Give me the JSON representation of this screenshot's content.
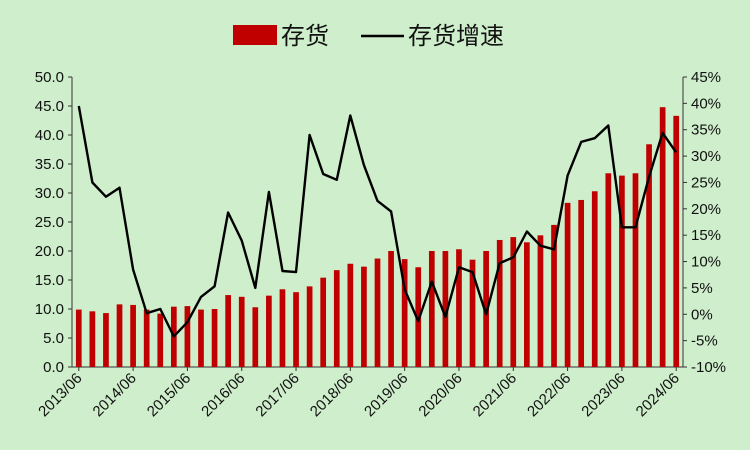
{
  "chart_data": {
    "type": "bar+line",
    "legend": {
      "position": "top-center"
    },
    "series": [
      {
        "name": "存货",
        "type": "bar",
        "axis": "left",
        "color": "#c00000",
        "values": [
          9.9,
          9.6,
          9.3,
          10.8,
          10.7,
          9.9,
          9.2,
          10.4,
          10.5,
          9.9,
          10.0,
          12.4,
          12.1,
          10.3,
          12.3,
          13.4,
          12.9,
          13.9,
          15.4,
          16.7,
          17.8,
          17.3,
          18.7,
          20.0,
          18.6,
          17.2,
          20.0,
          20.0,
          20.3,
          18.5,
          20.0,
          21.9,
          22.4,
          21.5,
          22.7,
          24.5,
          28.3,
          28.8,
          30.3,
          33.4,
          33.0,
          33.4,
          38.4,
          44.8,
          43.3
        ]
      },
      {
        "name": "存货增速",
        "type": "line",
        "axis": "right",
        "color": "#000000",
        "values": [
          39.5,
          25.0,
          22.3,
          24.0,
          8.5,
          0.2,
          1.0,
          -4.2,
          -1.5,
          3.3,
          5.3,
          19.3,
          14.0,
          5.0,
          23.2,
          8.2,
          8.0,
          34.0,
          26.6,
          25.5,
          37.7,
          28.3,
          21.5,
          19.5,
          4.7,
          -1.3,
          6.2,
          -0.5,
          8.9,
          8.0,
          0.0,
          9.7,
          10.8,
          15.7,
          13.0,
          12.3,
          26.3,
          32.7,
          33.4,
          35.8,
          16.5,
          16.5,
          26.1,
          34.4,
          30.7
        ]
      }
    ],
    "x_tick_labels": [
      "2013/06",
      "2014/06",
      "2015/06",
      "2016/06",
      "2017/06",
      "2018/06",
      "2019/06",
      "2020/06",
      "2021/06",
      "2022/06",
      "2023/06",
      "2024/06"
    ],
    "y_left": {
      "min": 0,
      "max": 50,
      "step": 5,
      "tick_labels": [
        "0.0",
        "5.0",
        "10.0",
        "15.0",
        "20.0",
        "25.0",
        "30.0",
        "35.0",
        "40.0",
        "45.0",
        "50.0"
      ]
    },
    "y_right": {
      "min": -10,
      "max": 45,
      "step": 5,
      "tick_labels": [
        "-10%",
        "-5%",
        "0%",
        "5%",
        "10%",
        "15%",
        "20%",
        "25%",
        "30%",
        "35%",
        "40%",
        "45%"
      ]
    },
    "grid": false,
    "background_color": "#cfeecb"
  }
}
